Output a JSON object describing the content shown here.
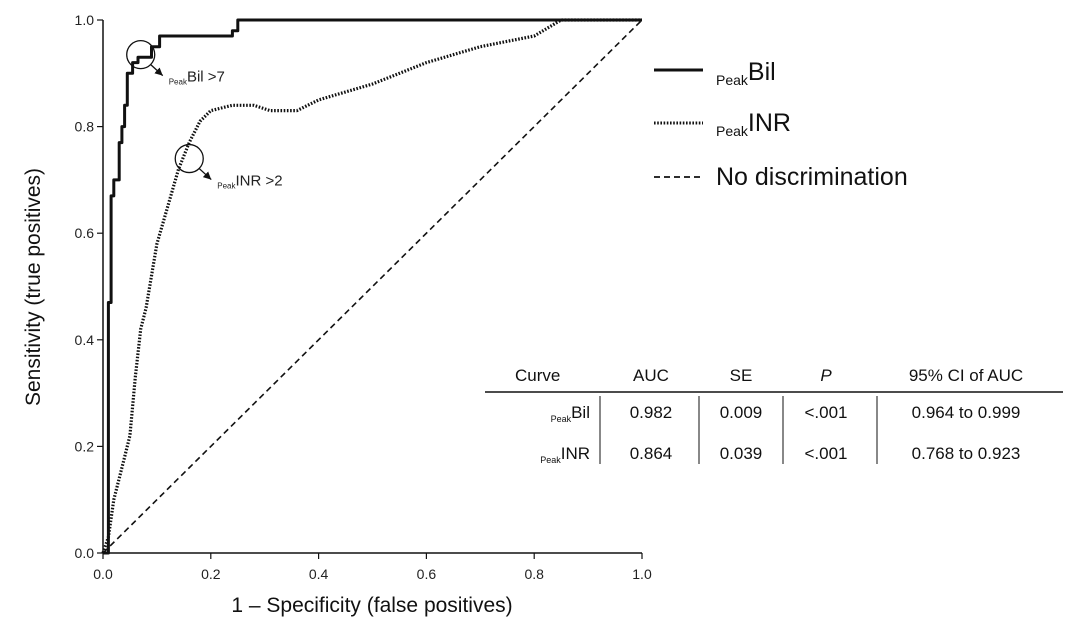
{
  "chart_data": {
    "type": "line",
    "xlabel": "1 – Specificity (false positives)",
    "ylabel": "Sensitivity (true positives)",
    "xlim": [
      0.0,
      1.0
    ],
    "ylim": [
      0.0,
      1.0
    ],
    "x_ticks": [
      "0.0",
      "0.2",
      "0.4",
      "0.6",
      "0.8",
      "1.0"
    ],
    "y_ticks": [
      "0.0",
      "0.2",
      "0.4",
      "0.6",
      "0.8",
      "1.0"
    ],
    "grid": false,
    "legend_position": "top-right",
    "series": [
      {
        "key": "bil",
        "name_sub": "Peak",
        "name_main": "Bil",
        "style": "solid",
        "points": [
          [
            0,
            0
          ],
          [
            0.01,
            0
          ],
          [
            0.01,
            0.47
          ],
          [
            0.015,
            0.47
          ],
          [
            0.015,
            0.67
          ],
          [
            0.02,
            0.67
          ],
          [
            0.02,
            0.7
          ],
          [
            0.03,
            0.7
          ],
          [
            0.03,
            0.77
          ],
          [
            0.035,
            0.77
          ],
          [
            0.035,
            0.8
          ],
          [
            0.04,
            0.8
          ],
          [
            0.04,
            0.84
          ],
          [
            0.045,
            0.84
          ],
          [
            0.045,
            0.9
          ],
          [
            0.055,
            0.9
          ],
          [
            0.055,
            0.92
          ],
          [
            0.065,
            0.92
          ],
          [
            0.065,
            0.93
          ],
          [
            0.09,
            0.93
          ],
          [
            0.09,
            0.95
          ],
          [
            0.105,
            0.95
          ],
          [
            0.105,
            0.97
          ],
          [
            0.24,
            0.97
          ],
          [
            0.24,
            0.98
          ],
          [
            0.25,
            0.98
          ],
          [
            0.25,
            1.0
          ],
          [
            1.0,
            1.0
          ]
        ]
      },
      {
        "key": "inr",
        "name_sub": "Peak",
        "name_main": "INR",
        "style": "dotted",
        "points": [
          [
            0,
            0
          ],
          [
            0.01,
            0.03
          ],
          [
            0.02,
            0.1
          ],
          [
            0.03,
            0.14
          ],
          [
            0.04,
            0.18
          ],
          [
            0.05,
            0.22
          ],
          [
            0.06,
            0.33
          ],
          [
            0.07,
            0.42
          ],
          [
            0.08,
            0.46
          ],
          [
            0.09,
            0.52
          ],
          [
            0.1,
            0.58
          ],
          [
            0.12,
            0.65
          ],
          [
            0.14,
            0.72
          ],
          [
            0.16,
            0.77
          ],
          [
            0.18,
            0.81
          ],
          [
            0.2,
            0.83
          ],
          [
            0.24,
            0.84
          ],
          [
            0.28,
            0.84
          ],
          [
            0.31,
            0.83
          ],
          [
            0.36,
            0.83
          ],
          [
            0.4,
            0.85
          ],
          [
            0.5,
            0.88
          ],
          [
            0.6,
            0.92
          ],
          [
            0.7,
            0.95
          ],
          [
            0.8,
            0.97
          ],
          [
            0.85,
            1.0
          ],
          [
            1.0,
            1.0
          ]
        ]
      },
      {
        "key": "ref",
        "name": "No discrimination",
        "style": "dashed",
        "points": [
          [
            0,
            0
          ],
          [
            1,
            1
          ]
        ]
      }
    ],
    "annotations": [
      {
        "key": "bil",
        "sub": "Peak",
        "main": "Bil >7",
        "x": 0.07,
        "y": 0.935
      },
      {
        "key": "inr",
        "sub": "Peak",
        "main": "INR >2",
        "x": 0.16,
        "y": 0.74
      }
    ],
    "table": {
      "headers": [
        "Curve",
        "AUC",
        "SE",
        "P",
        "95% CI of AUC"
      ],
      "rows": [
        {
          "curve_sub": "Peak",
          "curve_main": "Bil",
          "auc": "0.982",
          "se": "0.009",
          "p": "<.001",
          "ci": "0.964 to 0.999"
        },
        {
          "curve_sub": "Peak",
          "curve_main": "INR",
          "auc": "0.864",
          "se": "0.039",
          "p": "<.001",
          "ci": "0.768 to 0.923"
        }
      ]
    }
  }
}
